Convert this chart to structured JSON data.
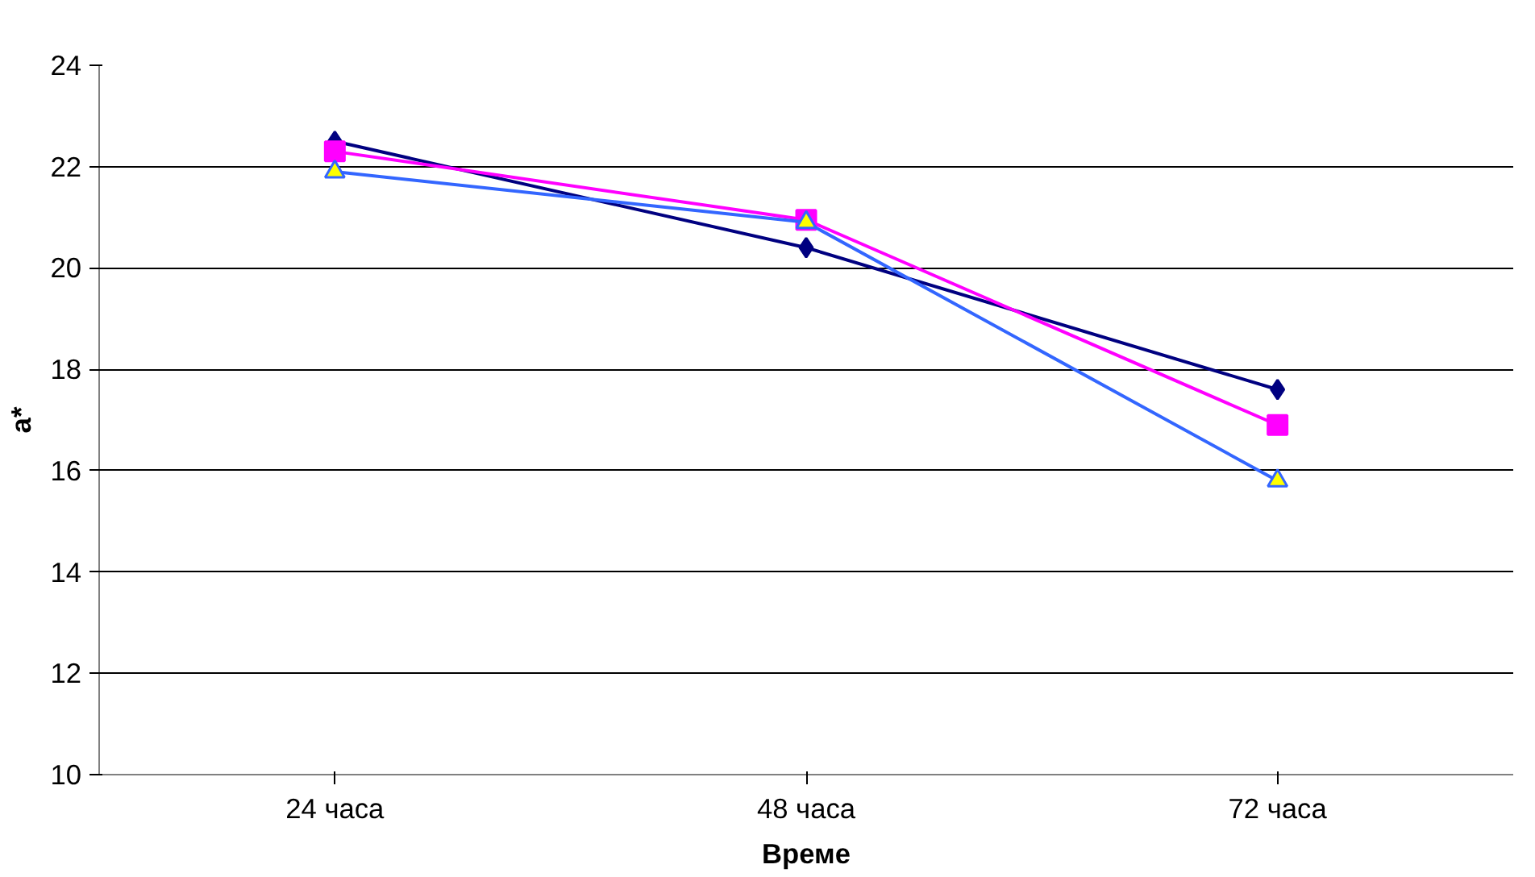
{
  "chart_data": {
    "type": "line",
    "xlabel": "Време",
    "ylabel": "a*",
    "categories": [
      "24 часа",
      "48 часа",
      "72 часа"
    ],
    "series": [
      {
        "color": "#000080",
        "marker": "diamond",
        "values": [
          22.5,
          20.4,
          17.6
        ]
      },
      {
        "color": "#ff00ff",
        "marker": "square",
        "values": [
          22.3,
          20.95,
          16.9
        ]
      },
      {
        "color": "#3366ff",
        "marker": "triangle",
        "values": [
          21.9,
          20.9,
          15.8
        ]
      }
    ],
    "ylim": [
      10,
      24
    ],
    "yticks": [
      10,
      12,
      14,
      16,
      18,
      20,
      22,
      24
    ],
    "grid": "y",
    "line_style": "solid"
  }
}
